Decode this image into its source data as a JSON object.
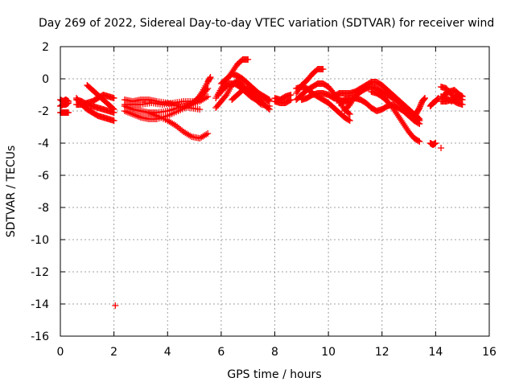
{
  "chart_data": {
    "type": "scatter",
    "title": "Day 269 of 2022, Sidereal Day-to-day VTEC variation (SDTVAR) for receiver wind",
    "xlabel": "GPS time / hours",
    "ylabel": "SDTVAR / TECUs",
    "xlim": [
      0,
      16
    ],
    "ylim": [
      -16,
      2
    ],
    "xticks": [
      0,
      2,
      4,
      6,
      8,
      10,
      12,
      14,
      16
    ],
    "yticks": [
      2,
      0,
      -2,
      -4,
      -6,
      -8,
      -10,
      -12,
      -14,
      -16
    ],
    "grid": true,
    "marker": "plus",
    "series": [
      {
        "name": "SDTVAR",
        "color": "#ff0000",
        "tracks": [
          [
            [
              0.0,
              -1.3
            ],
            [
              0.1,
              -1.4
            ],
            [
              0.2,
              -1.3
            ],
            [
              0.3,
              -1.4
            ]
          ],
          [
            [
              0.0,
              -2.1
            ],
            [
              0.1,
              -2.1
            ],
            [
              0.2,
              -2.1
            ],
            [
              0.3,
              -2.1
            ]
          ],
          [
            [
              0.0,
              -1.7
            ],
            [
              0.1,
              -1.6
            ],
            [
              0.2,
              -1.6
            ],
            [
              0.3,
              -1.5
            ]
          ],
          [
            [
              0.6,
              -1.2
            ],
            [
              0.8,
              -1.6
            ],
            [
              1.0,
              -1.9
            ],
            [
              1.2,
              -2.1
            ],
            [
              1.4,
              -2.3
            ],
            [
              1.6,
              -2.4
            ],
            [
              1.8,
              -2.5
            ],
            [
              2.0,
              -2.6
            ]
          ],
          [
            [
              0.6,
              -1.6
            ],
            [
              0.8,
              -1.6
            ],
            [
              1.0,
              -1.5
            ],
            [
              1.2,
              -1.4
            ],
            [
              1.4,
              -1.2
            ],
            [
              1.6,
              -1.0
            ],
            [
              1.8,
              -1.1
            ],
            [
              2.0,
              -1.2
            ]
          ],
          [
            [
              0.6,
              -1.3
            ],
            [
              0.8,
              -1.4
            ],
            [
              1.0,
              -1.6
            ],
            [
              1.2,
              -1.7
            ],
            [
              1.4,
              -1.8
            ],
            [
              1.6,
              -1.9
            ],
            [
              1.8,
              -2.0
            ],
            [
              2.0,
              -2.1
            ]
          ],
          [
            [
              1.0,
              -0.4
            ],
            [
              1.2,
              -0.7
            ],
            [
              1.4,
              -1.0
            ],
            [
              1.6,
              -1.3
            ],
            [
              1.8,
              -1.6
            ],
            [
              2.0,
              -1.9
            ]
          ],
          [
            [
              2.4,
              -1.7
            ],
            [
              2.7,
              -1.9
            ],
            [
              3.0,
              -2.0
            ],
            [
              3.3,
              -2.1
            ],
            [
              3.6,
              -2.1
            ],
            [
              4.0,
              -2.0
            ],
            [
              4.4,
              -1.8
            ],
            [
              4.8,
              -1.6
            ],
            [
              5.1,
              -1.3
            ],
            [
              5.3,
              -0.8
            ],
            [
              5.5,
              -0.2
            ],
            [
              5.6,
              0.1
            ]
          ],
          [
            [
              2.4,
              -1.6
            ],
            [
              2.7,
              -1.6
            ],
            [
              3.0,
              -1.6
            ],
            [
              3.4,
              -1.5
            ],
            [
              3.8,
              -1.6
            ],
            [
              4.2,
              -1.5
            ],
            [
              4.6,
              -1.4
            ],
            [
              5.0,
              -1.4
            ],
            [
              5.3,
              -1.0
            ],
            [
              5.5,
              -0.6
            ]
          ],
          [
            [
              2.4,
              -2.0
            ],
            [
              2.7,
              -2.2
            ],
            [
              3.0,
              -2.4
            ],
            [
              3.3,
              -2.5
            ],
            [
              3.6,
              -2.5
            ],
            [
              4.0,
              -2.3
            ],
            [
              4.4,
              -2.0
            ],
            [
              4.8,
              -1.7
            ],
            [
              5.2,
              -1.4
            ],
            [
              5.5,
              -1.1
            ]
          ],
          [
            [
              2.4,
              -1.3
            ],
            [
              2.7,
              -1.4
            ],
            [
              3.0,
              -1.3
            ],
            [
              3.3,
              -1.3
            ],
            [
              3.6,
              -1.4
            ],
            [
              4.0,
              -1.5
            ],
            [
              4.4,
              -1.7
            ],
            [
              4.8,
              -1.8
            ],
            [
              5.2,
              -1.9
            ]
          ],
          [
            [
              3.3,
              -2.1
            ],
            [
              3.6,
              -2.3
            ],
            [
              4.0,
              -2.6
            ],
            [
              4.3,
              -2.9
            ],
            [
              4.6,
              -3.3
            ],
            [
              4.9,
              -3.6
            ],
            [
              5.2,
              -3.7
            ],
            [
              5.5,
              -3.4
            ]
          ],
          [
            [
              5.8,
              -1.2
            ],
            [
              6.0,
              -0.6
            ],
            [
              6.2,
              -0.1
            ],
            [
              6.4,
              0.4
            ],
            [
              6.6,
              0.9
            ],
            [
              6.8,
              1.2
            ],
            [
              7.0,
              1.2
            ]
          ],
          [
            [
              5.8,
              -1.8
            ],
            [
              6.0,
              -1.4
            ],
            [
              6.2,
              -1.0
            ],
            [
              6.4,
              -0.4
            ],
            [
              6.6,
              -0.1
            ],
            [
              6.8,
              -0.4
            ],
            [
              7.0,
              -0.8
            ],
            [
              7.2,
              -1.1
            ],
            [
              7.4,
              -1.3
            ],
            [
              7.6,
              -1.6
            ],
            [
              7.8,
              -1.9
            ]
          ],
          [
            [
              6.0,
              -0.3
            ],
            [
              6.2,
              0.0
            ],
            [
              6.4,
              0.3
            ],
            [
              6.6,
              0.2
            ],
            [
              6.8,
              0.0
            ],
            [
              7.0,
              -0.3
            ],
            [
              7.2,
              -0.6
            ],
            [
              7.4,
              -0.9
            ],
            [
              7.6,
              -1.1
            ],
            [
              7.8,
              -1.3
            ]
          ],
          [
            [
              5.9,
              -1.0
            ],
            [
              6.1,
              -0.6
            ],
            [
              6.3,
              -0.3
            ],
            [
              6.5,
              -0.3
            ],
            [
              6.7,
              -0.5
            ],
            [
              6.9,
              -0.8
            ],
            [
              7.1,
              -1.1
            ],
            [
              7.3,
              -1.3
            ],
            [
              7.5,
              -1.6
            ],
            [
              7.8,
              -1.7
            ]
          ],
          [
            [
              6.4,
              -1.3
            ],
            [
              6.6,
              -1.0
            ],
            [
              6.8,
              -0.7
            ],
            [
              7.0,
              -0.6
            ],
            [
              7.2,
              -0.8
            ],
            [
              7.4,
              -1.0
            ],
            [
              7.6,
              -1.2
            ],
            [
              7.8,
              -1.4
            ]
          ],
          [
            [
              8.0,
              -1.2
            ],
            [
              8.2,
              -1.3
            ],
            [
              8.4,
              -1.1
            ],
            [
              8.6,
              -1.0
            ]
          ],
          [
            [
              8.0,
              -1.4
            ],
            [
              8.2,
              -1.5
            ],
            [
              8.4,
              -1.5
            ],
            [
              8.6,
              -1.3
            ]
          ],
          [
            [
              8.8,
              -0.9
            ],
            [
              9.0,
              -0.4
            ],
            [
              9.2,
              -0.1
            ],
            [
              9.4,
              0.3
            ],
            [
              9.6,
              0.6
            ],
            [
              9.8,
              0.6
            ]
          ],
          [
            [
              8.8,
              -1.3
            ],
            [
              9.0,
              -1.0
            ],
            [
              9.2,
              -0.7
            ],
            [
              9.4,
              -0.5
            ],
            [
              9.6,
              -0.3
            ],
            [
              9.8,
              -0.3
            ],
            [
              10.0,
              -0.5
            ],
            [
              10.2,
              -0.9
            ],
            [
              10.4,
              -1.4
            ],
            [
              10.6,
              -1.9
            ],
            [
              10.8,
              -2.2
            ]
          ],
          [
            [
              8.8,
              -0.6
            ],
            [
              9.0,
              -0.5
            ],
            [
              9.2,
              -0.6
            ],
            [
              9.4,
              -0.9
            ],
            [
              9.6,
              -1.1
            ],
            [
              9.8,
              -1.3
            ],
            [
              10.0,
              -1.5
            ],
            [
              10.2,
              -1.8
            ],
            [
              10.4,
              -2.1
            ],
            [
              10.6,
              -2.4
            ],
            [
              10.8,
              -2.6
            ]
          ],
          [
            [
              9.0,
              -1.3
            ],
            [
              9.2,
              -1.2
            ],
            [
              9.4,
              -1.0
            ],
            [
              9.6,
              -0.9
            ],
            [
              9.8,
              -0.9
            ],
            [
              10.0,
              -1.0
            ],
            [
              10.2,
              -1.2
            ],
            [
              10.4,
              -1.3
            ],
            [
              10.6,
              -1.4
            ],
            [
              10.8,
              -1.5
            ]
          ],
          [
            [
              10.2,
              -1.1
            ],
            [
              10.4,
              -0.9
            ],
            [
              10.6,
              -0.9
            ],
            [
              10.8,
              -0.9
            ],
            [
              11.0,
              -0.8
            ],
            [
              11.2,
              -0.6
            ],
            [
              11.4,
              -0.4
            ],
            [
              11.6,
              -0.2
            ],
            [
              11.8,
              -0.2
            ],
            [
              12.0,
              -0.4
            ],
            [
              12.2,
              -0.7
            ],
            [
              12.4,
              -1.0
            ],
            [
              12.6,
              -1.3
            ],
            [
              12.8,
              -1.6
            ],
            [
              13.0,
              -1.9
            ],
            [
              13.2,
              -2.2
            ],
            [
              13.4,
              -2.5
            ]
          ],
          [
            [
              10.6,
              -2.0
            ],
            [
              10.8,
              -1.6
            ],
            [
              11.0,
              -1.1
            ],
            [
              11.2,
              -0.8
            ],
            [
              11.4,
              -0.6
            ],
            [
              11.6,
              -0.5
            ],
            [
              11.8,
              -0.6
            ],
            [
              12.0,
              -0.8
            ],
            [
              12.2,
              -1.0
            ],
            [
              12.4,
              -1.2
            ],
            [
              12.6,
              -1.4
            ],
            [
              12.8,
              -1.7
            ],
            [
              13.0,
              -2.0
            ],
            [
              13.2,
              -2.3
            ],
            [
              13.4,
              -2.6
            ]
          ],
          [
            [
              10.4,
              -1.5
            ],
            [
              10.6,
              -1.3
            ],
            [
              10.8,
              -1.2
            ],
            [
              11.0,
              -1.2
            ],
            [
              11.2,
              -1.3
            ],
            [
              11.4,
              -1.5
            ],
            [
              11.6,
              -1.8
            ],
            [
              11.8,
              -2.0
            ],
            [
              12.0,
              -1.9
            ],
            [
              12.2,
              -1.7
            ],
            [
              12.4,
              -1.6
            ],
            [
              12.6,
              -1.8
            ],
            [
              12.8,
              -2.0
            ],
            [
              13.0,
              -2.3
            ],
            [
              13.2,
              -2.6
            ],
            [
              13.4,
              -2.8
            ]
          ],
          [
            [
              11.6,
              -0.8
            ],
            [
              11.8,
              -0.9
            ],
            [
              12.0,
              -1.1
            ],
            [
              12.2,
              -1.4
            ],
            [
              12.4,
              -1.8
            ],
            [
              12.6,
              -2.3
            ],
            [
              12.8,
              -2.8
            ],
            [
              13.0,
              -3.3
            ],
            [
              13.2,
              -3.7
            ],
            [
              13.4,
              -3.9
            ]
          ],
          [
            [
              13.2,
              -2.5
            ],
            [
              13.3,
              -2.1
            ],
            [
              13.4,
              -1.8
            ],
            [
              13.5,
              -1.4
            ],
            [
              13.6,
              -1.2
            ]
          ],
          [
            [
              13.8,
              -1.7
            ],
            [
              13.9,
              -1.5
            ],
            [
              14.0,
              -1.4
            ],
            [
              14.1,
              -1.2
            ]
          ],
          [
            [
              14.2,
              -0.5
            ],
            [
              14.4,
              -0.6
            ],
            [
              14.6,
              -1.0
            ],
            [
              14.8,
              -1.2
            ],
            [
              15.0,
              -1.3
            ]
          ],
          [
            [
              14.3,
              -1.0
            ],
            [
              14.5,
              -0.8
            ],
            [
              14.7,
              -0.7
            ],
            [
              14.9,
              -1.0
            ],
            [
              15.0,
              -1.1
            ]
          ],
          [
            [
              14.2,
              -1.4
            ],
            [
              14.4,
              -1.4
            ],
            [
              14.6,
              -1.3
            ],
            [
              14.8,
              -1.5
            ],
            [
              15.0,
              -1.6
            ]
          ],
          [
            [
              14.2,
              -1.1
            ],
            [
              14.4,
              -1.2
            ],
            [
              14.6,
              -1.4
            ],
            [
              14.8,
              -1.1
            ]
          ],
          [
            [
              13.8,
              -4.0
            ],
            [
              13.9,
              -4.1
            ],
            [
              14.0,
              -4.0
            ]
          ],
          [
            [
              14.2,
              -4.3
            ]
          ],
          [
            [
              2.05,
              -14.1
            ]
          ]
        ]
      }
    ]
  }
}
